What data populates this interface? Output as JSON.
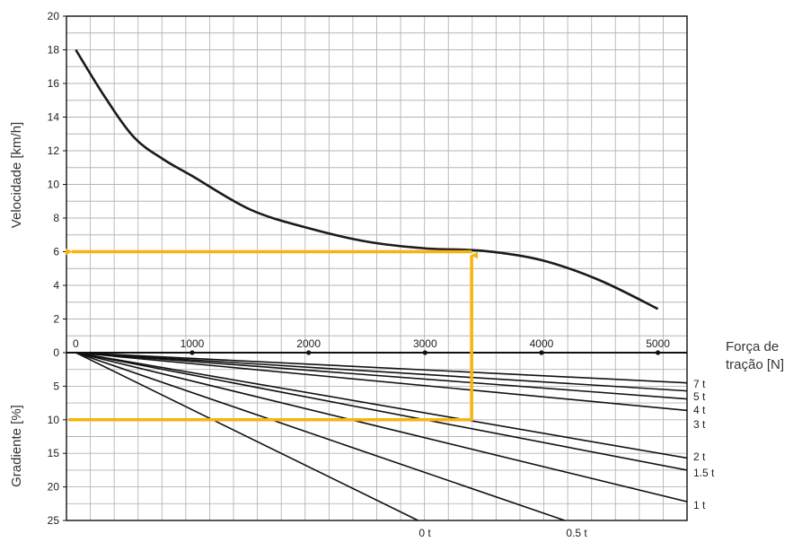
{
  "chart_data": {
    "type": "line",
    "upper_panel": {
      "ylabel": "Velocidade [km/h]",
      "ylim": [
        0,
        20
      ],
      "yticks": [
        "0",
        "2",
        "4",
        "6",
        "8",
        "10",
        "12",
        "14",
        "16",
        "18",
        "20"
      ],
      "series": [
        {
          "x": [
            0,
            250,
            500,
            750,
            1000,
            1500,
            2000,
            2500,
            3000,
            3500,
            4000,
            4500,
            5000
          ],
          "y": [
            18,
            15.2,
            12.8,
            11.5,
            10.5,
            8.5,
            7.4,
            6.6,
            6.2,
            6.05,
            5.5,
            4.3,
            2.6
          ],
          "color": "#1a1a1a"
        }
      ]
    },
    "x_axis": {
      "label_line1": "Força de",
      "label_line2": "tração [N]",
      "ticks": [
        "0",
        "1000",
        "2000",
        "3000",
        "4000",
        "5000"
      ],
      "tick_values": [
        0,
        1000,
        2000,
        3000,
        4000,
        5000
      ],
      "xlim": [
        -80,
        5250
      ]
    },
    "lower_panel": {
      "ylabel": "Gradiente [%]",
      "ylim": [
        0,
        25
      ],
      "yticks": [
        "0",
        "5",
        "10",
        "15",
        "20",
        "25"
      ],
      "series": [
        {
          "name": "7 t",
          "end_x": 5250,
          "end_y": 4.5
        },
        {
          "name": "5 t",
          "end_x": 5250,
          "end_y": 5.7
        },
        {
          "name": "4 t",
          "end_x": 5250,
          "end_y": 6.9
        },
        {
          "name": "3 t",
          "end_x": 5250,
          "end_y": 8.6
        },
        {
          "name": "2 t",
          "end_x": 5250,
          "end_y": 15.7
        },
        {
          "name": "1.5 t",
          "end_x": 5250,
          "end_y": 17.5
        },
        {
          "name": "1 t",
          "end_x": 5250,
          "end_y": 22.2
        },
        {
          "name": "0.5 t",
          "end_x": 4200,
          "end_y": 25
        },
        {
          "name": "0 t",
          "end_x": 2940,
          "end_y": 25
        }
      ]
    },
    "example": {
      "color": "#f6b40e",
      "gradient": 10,
      "force": 3400,
      "speed": 6
    }
  }
}
